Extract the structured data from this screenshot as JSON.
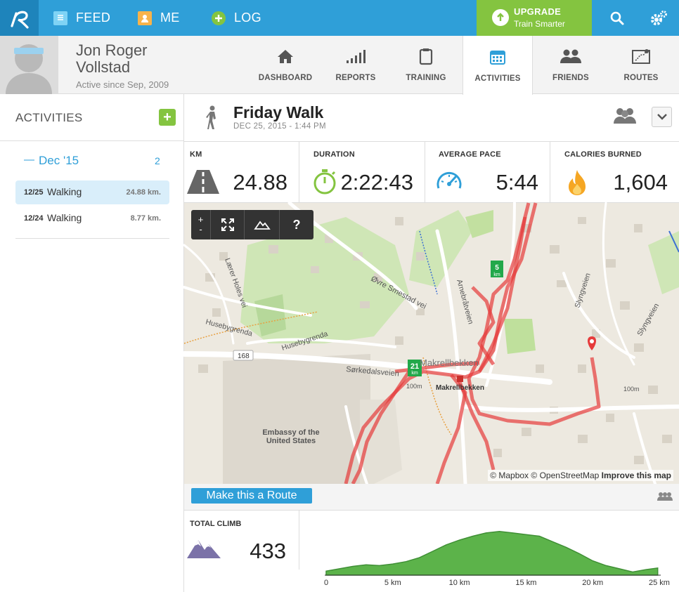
{
  "nav": {
    "feed": "FEED",
    "me": "ME",
    "log": "LOG",
    "upgrade_title": "UPGRADE",
    "upgrade_sub": "Train Smarter"
  },
  "profile": {
    "name": "Jon Roger Vollstad",
    "since": "Active since Sep, 2009"
  },
  "tabs": [
    {
      "label": "DASHBOARD",
      "icon": "home-icon"
    },
    {
      "label": "REPORTS",
      "icon": "bar-chart-icon"
    },
    {
      "label": "TRAINING",
      "icon": "clipboard-icon"
    },
    {
      "label": "ACTIVITIES",
      "icon": "calendar-icon",
      "active": true
    },
    {
      "label": "FRIENDS",
      "icon": "friends-icon"
    },
    {
      "label": "ROUTES",
      "icon": "route-map-icon"
    }
  ],
  "sidebar": {
    "title": "ACTIVITIES",
    "add": "+",
    "month": {
      "label": "Dec '15",
      "count": "2",
      "toggle": "—"
    },
    "activities": [
      {
        "date": "12/25",
        "name": "Walking",
        "distance": "24.88 km.",
        "selected": true
      },
      {
        "date": "12/24",
        "name": "Walking",
        "distance": "8.77 km.",
        "selected": false
      }
    ]
  },
  "activity": {
    "title": "Friday Walk",
    "date": "DEC 25, 2015  -  1:44 PM"
  },
  "stats": [
    {
      "label": "KM",
      "value": "24.88",
      "icon": "road-icon"
    },
    {
      "label": "DURATION",
      "value": "2:22:43",
      "icon": "stopwatch-icon"
    },
    {
      "label": "AVERAGE PACE",
      "value": "5:44",
      "icon": "speedometer-icon"
    },
    {
      "label": "CALORIES BURNED",
      "value": "1,604",
      "icon": "flame-icon"
    }
  ],
  "map": {
    "controls": {
      "zoom_in": "+",
      "zoom_out": "-",
      "help": "?"
    },
    "labels": {
      "road_168": "168",
      "embassy": "Embassy of the United States",
      "makrellbekken": "Makrellbekken",
      "makrellbekken_stop": "Makrellbekken",
      "sorkedalsveien": "Sørkedalsveien",
      "husebygrenda": "Husebygrenda",
      "husebygrenda2": "Husebygrenda",
      "ovre_smestad": "Øvre Smestad vei",
      "laerer_holes": "Lærer Holes vei",
      "arnebratveien": "Arnebråtveien",
      "slyngveien": "Slyngveien",
      "slyngveien2": "Slyngveien",
      "m100": "100m",
      "m100b": "100m",
      "marker_5": "5",
      "marker_21": "21",
      "marker_unit": "km"
    },
    "attribution": {
      "mapbox": "© Mapbox",
      "osm": "© OpenStreetMap",
      "improve": "Improve this map"
    }
  },
  "route": {
    "button": "Make this a Route"
  },
  "climb": {
    "label": "TOTAL CLIMB",
    "value": "433",
    "icon": "mountain-icon"
  },
  "chart_data": {
    "type": "area",
    "title": "",
    "xlabel": "",
    "ylabel": "",
    "x_ticks": [
      "0",
      "5 km",
      "10 km",
      "15 km",
      "20 km",
      "25 km"
    ],
    "xlim": [
      0,
      25
    ],
    "x": [
      0,
      1,
      2,
      3,
      4,
      5,
      6,
      7,
      8,
      9,
      10,
      11,
      12,
      13,
      14,
      15,
      16,
      17,
      18,
      19,
      20,
      21,
      22,
      23,
      24,
      24.88
    ],
    "values": [
      5,
      8,
      11,
      13,
      12,
      14,
      17,
      22,
      30,
      38,
      44,
      49,
      53,
      55,
      53,
      51,
      49,
      42,
      35,
      27,
      18,
      12,
      8,
      4,
      7,
      9
    ],
    "color": "#5cb34a"
  }
}
